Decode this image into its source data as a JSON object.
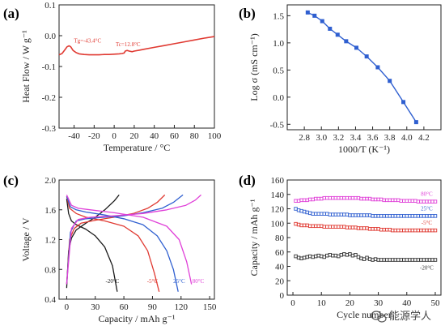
{
  "chart_data": [
    {
      "panel": "(a)",
      "type": "line",
      "xlabel": "Temperature / °C",
      "ylabel": "Heat Flow / W g⁻¹",
      "xlim": [
        -55,
        100
      ],
      "ylim": [
        -0.3,
        0.1
      ],
      "xticks": [
        -40,
        -20,
        0,
        20,
        40,
        60,
        80,
        100
      ],
      "yticks": [
        0.1,
        0.0,
        -0.1,
        -0.2,
        -0.3
      ],
      "color": "#e03a32",
      "x": [
        -55,
        -52,
        -49,
        -47,
        -45,
        -43.4,
        -41,
        -38,
        -35,
        -30,
        -25,
        -20,
        -15,
        -10,
        -5,
        0,
        5,
        8,
        10,
        11,
        12.8,
        15,
        18,
        20,
        25,
        30,
        40,
        50,
        60,
        70,
        80,
        90,
        100
      ],
      "y": [
        -0.062,
        -0.058,
        -0.045,
        -0.036,
        -0.033,
        -0.036,
        -0.048,
        -0.055,
        -0.059,
        -0.061,
        -0.062,
        -0.062,
        -0.062,
        -0.061,
        -0.061,
        -0.06,
        -0.059,
        -0.058,
        -0.056,
        -0.05,
        -0.048,
        -0.05,
        -0.052,
        -0.05,
        -0.047,
        -0.044,
        -0.038,
        -0.032,
        -0.026,
        -0.02,
        -0.014,
        -0.008,
        -0.003
      ],
      "annotations": [
        {
          "text": "Tg=-43.4°C",
          "at": [
            -43.4,
            -0.036
          ]
        },
        {
          "text": "Tc=12.8°C",
          "at": [
            12.8,
            -0.048
          ]
        }
      ]
    },
    {
      "panel": "(b)",
      "type": "line",
      "xlabel": "1000/T (K⁻¹)",
      "ylabel": "Log σ (mS cm⁻¹)",
      "xlim": [
        2.6,
        4.4
      ],
      "ylim": [
        -0.6,
        1.7
      ],
      "xticks": [
        2.8,
        3.0,
        3.2,
        3.4,
        3.6,
        3.8,
        4.0,
        4.2
      ],
      "yticks": [
        1.5,
        1.0,
        0.5,
        0.0,
        -0.5
      ],
      "color": "#2f5fd0",
      "x": [
        2.84,
        2.92,
        3.01,
        3.1,
        3.19,
        3.29,
        3.41,
        3.53,
        3.66,
        3.8,
        3.96,
        4.11
      ],
      "y": [
        1.56,
        1.5,
        1.4,
        1.26,
        1.15,
        1.03,
        0.91,
        0.75,
        0.55,
        0.3,
        -0.09,
        -0.46
      ]
    },
    {
      "panel": "(c)",
      "type": "line",
      "xlabel": "Capacity / mAh g⁻¹",
      "ylabel": "Voltage / V",
      "xlim": [
        -8,
        155
      ],
      "ylim": [
        0.4,
        2.0
      ],
      "xticks": [
        0,
        30,
        60,
        90,
        120,
        150
      ],
      "yticks": [
        2.0,
        1.6,
        1.2,
        0.8,
        0.4
      ],
      "series": [
        {
          "name": "-20°C",
          "color": "#1a1a1a",
          "charge": {
            "x": [
              0,
              2,
              5,
              10,
              20,
              30,
              40,
              50,
              55
            ],
            "y": [
              0.55,
              1.05,
              1.22,
              1.33,
              1.42,
              1.5,
              1.6,
              1.72,
              1.8
            ]
          },
          "discharge": {
            "x": [
              0,
              2,
              5,
              10,
              20,
              30,
              40,
              48,
              53
            ],
            "y": [
              1.75,
              1.55,
              1.45,
              1.4,
              1.34,
              1.25,
              1.1,
              0.85,
              0.5
            ]
          }
        },
        {
          "name": "-5°C",
          "color": "#e03a32",
          "charge": {
            "x": [
              0,
              3,
              8,
              15,
              30,
              50,
              70,
              85,
              95,
              103
            ],
            "y": [
              0.6,
              1.2,
              1.35,
              1.42,
              1.46,
              1.5,
              1.55,
              1.62,
              1.7,
              1.8
            ]
          },
          "discharge": {
            "x": [
              0,
              3,
              10,
              20,
              40,
              60,
              75,
              85,
              92,
              97
            ],
            "y": [
              1.78,
              1.62,
              1.55,
              1.5,
              1.45,
              1.38,
              1.25,
              1.05,
              0.75,
              0.5
            ]
          }
        },
        {
          "name": "25°C",
          "color": "#2f5fd0",
          "charge": {
            "x": [
              0,
              4,
              10,
              20,
              40,
              60,
              80,
              100,
              112,
              122
            ],
            "y": [
              0.6,
              1.3,
              1.45,
              1.48,
              1.5,
              1.52,
              1.56,
              1.62,
              1.7,
              1.8
            ]
          },
          "discharge": {
            "x": [
              0,
              4,
              10,
              20,
              40,
              60,
              80,
              95,
              105,
              112,
              117
            ],
            "y": [
              1.78,
              1.64,
              1.6,
              1.57,
              1.53,
              1.48,
              1.4,
              1.25,
              1.05,
              0.8,
              0.5
            ]
          }
        },
        {
          "name": "80°C",
          "color": "#e040d8",
          "charge": {
            "x": [
              0,
              5,
              12,
              25,
              50,
              80,
              105,
              125,
              135,
              141
            ],
            "y": [
              0.6,
              1.35,
              1.47,
              1.5,
              1.52,
              1.55,
              1.6,
              1.66,
              1.73,
              1.8
            ]
          },
          "discharge": {
            "x": [
              0,
              5,
              12,
              25,
              50,
              80,
              105,
              118,
              126,
              131
            ],
            "y": [
              1.8,
              1.66,
              1.62,
              1.6,
              1.56,
              1.5,
              1.38,
              1.2,
              0.9,
              0.6
            ]
          }
        }
      ]
    },
    {
      "panel": "(d)",
      "type": "scatter",
      "xlabel": "Cycle number",
      "ylabel": "Capacity / mAh g⁻¹",
      "xlim": [
        -2,
        52
      ],
      "ylim": [
        0,
        160
      ],
      "xticks": [
        0,
        10,
        20,
        30,
        40,
        50
      ],
      "yticks": [
        0,
        20,
        40,
        60,
        80,
        100,
        120,
        140,
        160
      ],
      "x": [
        1,
        2,
        3,
        4,
        5,
        6,
        7,
        8,
        9,
        10,
        11,
        12,
        13,
        14,
        15,
        16,
        17,
        18,
        19,
        20,
        21,
        22,
        23,
        24,
        25,
        26,
        27,
        28,
        29,
        30,
        31,
        32,
        33,
        34,
        35,
        36,
        37,
        38,
        39,
        40,
        41,
        42,
        43,
        44,
        45,
        46,
        47,
        48,
        49,
        50
      ],
      "series": [
        {
          "name": "80°C",
          "color": "#e040d8",
          "values": [
            131,
            131,
            132,
            132,
            132,
            133,
            133,
            134,
            134,
            134,
            135,
            135,
            135,
            135,
            135,
            135,
            135,
            135,
            135,
            135,
            135,
            135,
            135,
            134,
            134,
            134,
            134,
            133,
            133,
            133,
            133,
            132,
            132,
            132,
            132,
            132,
            132,
            131,
            131,
            131,
            131,
            131,
            131,
            130,
            130,
            130,
            130,
            130,
            130,
            130
          ]
        },
        {
          "name": "25°C",
          "color": "#2f5fd0",
          "values": [
            120,
            118,
            117,
            116,
            115,
            114,
            113,
            113,
            113,
            113,
            113,
            113,
            112,
            112,
            112,
            112,
            112,
            112,
            112,
            111,
            111,
            111,
            111,
            111,
            111,
            111,
            111,
            110,
            110,
            110,
            110,
            110,
            110,
            110,
            110,
            110,
            110,
            110,
            110,
            110,
            110,
            110,
            110,
            110,
            110,
            110,
            110,
            110,
            110,
            110
          ]
        },
        {
          "name": "-5°C",
          "color": "#e03a32",
          "values": [
            99,
            98,
            97,
            97,
            97,
            96,
            96,
            96,
            96,
            96,
            95,
            95,
            95,
            95,
            95,
            95,
            95,
            95,
            94,
            94,
            94,
            94,
            93,
            93,
            93,
            93,
            92,
            92,
            92,
            92,
            91,
            91,
            91,
            91,
            90,
            90,
            90,
            90,
            90,
            90,
            90,
            90,
            90,
            90,
            90,
            90,
            90,
            90,
            90,
            90
          ]
        },
        {
          "name": "-20°C",
          "color": "#333333",
          "values": [
            54,
            52,
            51,
            52,
            53,
            54,
            53,
            54,
            55,
            54,
            53,
            55,
            56,
            55,
            55,
            54,
            56,
            57,
            56,
            57,
            55,
            56,
            53,
            51,
            50,
            52,
            50,
            49,
            50,
            49,
            49,
            49,
            49,
            49,
            49,
            49,
            49,
            49,
            49,
            49,
            49,
            49,
            49,
            49,
            49,
            49,
            49,
            49,
            49,
            49
          ]
        }
      ]
    }
  ],
  "watermark": "能源学人"
}
